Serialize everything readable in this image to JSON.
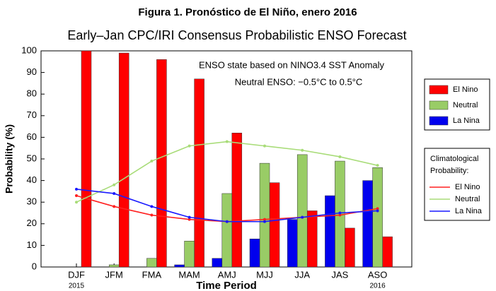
{
  "chart_data": {
    "type": "bar",
    "title": "Figura 1.  Pronóstico de El Niño, enero 2016",
    "subtitle": "Early–Jan CPC/IRI Consensus Probabilistic ENSO Forecast",
    "annotations": [
      "ENSO state based on NINO3.4 SST Anomaly",
      "Neutral ENSO: −0.5°C to 0.5°C"
    ],
    "x_label": "Time Period",
    "y_label": "Probability (%)",
    "categories": [
      "DJF",
      "JFM",
      "FMA",
      "MAM",
      "AMJ",
      "MJJ",
      "JJA",
      "JAS",
      "ASO"
    ],
    "year_labels": [
      "2015",
      null,
      null,
      null,
      null,
      null,
      null,
      null,
      "2016"
    ],
    "ylim": [
      0,
      100
    ],
    "yticks": [
      0,
      10,
      20,
      30,
      40,
      50,
      60,
      70,
      80,
      90,
      100
    ],
    "grid": false,
    "series": [
      {
        "name": "El Nino",
        "color": "#ff0000",
        "values": [
          100,
          99,
          96,
          87,
          62,
          39,
          26,
          18,
          14
        ]
      },
      {
        "name": "Neutral",
        "color": "#99cc66",
        "values": [
          0,
          1,
          4,
          12,
          34,
          48,
          52,
          49,
          46
        ]
      },
      {
        "name": "La Nina",
        "color": "#0000ee",
        "values": [
          0,
          0,
          0,
          1,
          4,
          13,
          22,
          33,
          40
        ]
      }
    ],
    "clim_legend_title": [
      "Climatological",
      "Probability:"
    ],
    "clim_series": [
      {
        "name": "El Nino",
        "color": "#ff2020",
        "values": [
          33,
          28,
          24,
          22,
          21,
          22,
          23,
          24,
          27
        ]
      },
      {
        "name": "Neutral",
        "color": "#a8dc78",
        "values": [
          30,
          38,
          49,
          56,
          58,
          56,
          54,
          51,
          47
        ]
      },
      {
        "name": "La Nina",
        "color": "#1a1aff",
        "values": [
          36,
          34,
          28,
          23,
          21,
          21,
          23,
          25,
          26
        ]
      }
    ]
  }
}
